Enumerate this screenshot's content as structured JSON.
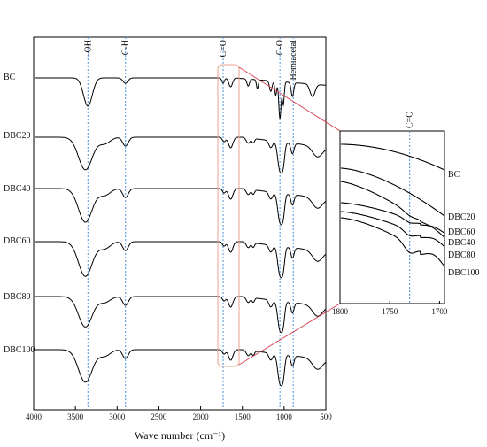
{
  "chart_data": [
    {
      "type": "line",
      "xlabel": "Wave number (cm⁻¹)",
      "ylabel": "",
      "xlim": [
        4000,
        500
      ],
      "x_ticks": [
        4000,
        3500,
        3000,
        2500,
        2000,
        1500,
        1000,
        500
      ],
      "x_tick_labels": [
        "4000",
        "3500",
        "3000",
        "2500",
        "2000",
        "1500",
        "1000",
        "500"
      ],
      "grid": false,
      "band_markers": [
        {
          "label": "-OH",
          "x": 3350
        },
        {
          "label": "C-H",
          "x": 2900
        },
        {
          "label": "C=O",
          "x": 1730
        },
        {
          "label": "C-O",
          "x": 1050
        },
        {
          "label": "Hemiacetal",
          "x": 890
        }
      ],
      "series": [
        {
          "name": "BC"
        },
        {
          "name": "DBC20"
        },
        {
          "name": "DBC40"
        },
        {
          "name": "DBC60"
        },
        {
          "name": "DBC80"
        },
        {
          "name": "DBC100"
        }
      ]
    },
    {
      "type": "line",
      "xlabel": "",
      "ylabel": "",
      "xlim": [
        1800,
        1695
      ],
      "x_ticks": [
        1800,
        1750,
        1700
      ],
      "x_tick_labels": [
        "1800",
        "1750",
        "1700"
      ],
      "band_markers": [
        {
          "label": "C=O",
          "x": 1730
        }
      ],
      "series": [
        {
          "name": "BC"
        },
        {
          "name": "DBC20"
        },
        {
          "name": "DBC60"
        },
        {
          "name": "DBC40"
        },
        {
          "name": "DBC80"
        },
        {
          "name": "DBC100"
        }
      ]
    }
  ]
}
